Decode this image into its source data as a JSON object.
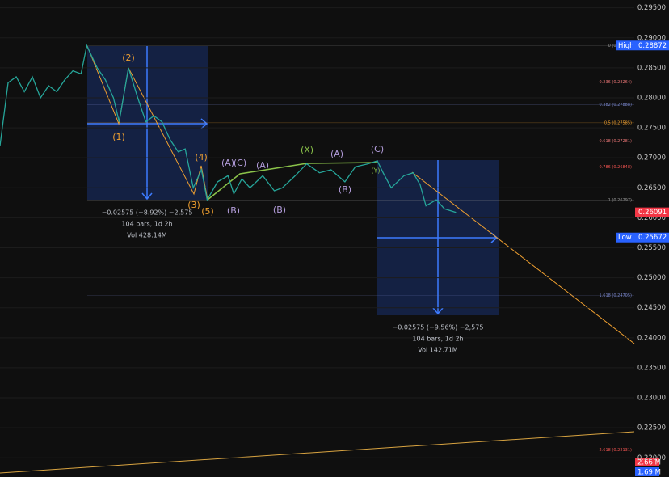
{
  "chart_data": {
    "type": "line",
    "x": [
      0,
      7,
      14,
      21,
      28,
      35,
      42,
      49,
      56,
      63,
      70,
      75,
      84,
      91,
      98,
      103,
      111,
      119,
      126,
      133,
      140,
      147,
      154,
      160,
      167,
      174,
      179,
      188,
      197,
      202,
      209,
      216,
      227,
      237,
      244,
      255,
      265,
      276,
      286,
      298,
      307,
      318,
      326,
      331,
      338,
      349,
      357,
      363,
      368,
      377,
      384,
      394
    ],
    "series": [
      {
        "color": "#26a69a",
        "values": [
          0.272,
          0.2825,
          0.2835,
          0.281,
          0.2835,
          0.28,
          0.282,
          0.281,
          0.283,
          0.2845,
          0.284,
          0.2887,
          0.285,
          0.283,
          0.28,
          0.276,
          0.285,
          0.28,
          0.276,
          0.277,
          0.276,
          0.273,
          0.271,
          0.2715,
          0.265,
          0.268,
          0.263,
          0.266,
          0.267,
          0.264,
          0.2665,
          0.265,
          0.267,
          0.2645,
          0.265,
          0.267,
          0.269,
          0.2675,
          0.268,
          0.266,
          0.2685,
          0.269,
          0.2695,
          0.2675,
          0.265,
          0.267,
          0.2675,
          0.2655,
          0.262,
          0.263,
          0.2615,
          0.2609
        ]
      }
    ],
    "xlim": [
      0,
      548
    ],
    "ylim": [
      0.2168,
      0.2963
    ],
    "yticks": [
      {
        "value": 0.295,
        "label": "0.29500"
      },
      {
        "value": 0.29,
        "label": "0.29000"
      },
      {
        "value": 0.285,
        "label": "0.28500"
      },
      {
        "value": 0.28,
        "label": "0.28000"
      },
      {
        "value": 0.275,
        "label": "0.27500"
      },
      {
        "value": 0.27,
        "label": "0.27000"
      },
      {
        "value": 0.265,
        "label": "0.26500"
      },
      {
        "value": 0.26,
        "label": "0.26000"
      },
      {
        "value": 0.255,
        "label": "0.25500"
      },
      {
        "value": 0.25,
        "label": "0.25000"
      },
      {
        "value": 0.245,
        "label": "0.24500"
      },
      {
        "value": 0.24,
        "label": "0.24000"
      },
      {
        "value": 0.235,
        "label": "0.23500"
      },
      {
        "value": 0.23,
        "label": "0.23000"
      },
      {
        "value": 0.225,
        "label": "0.22500"
      },
      {
        "value": 0.22,
        "label": "0.22000"
      }
    ],
    "fib_levels": [
      {
        "label": "0 (0.28872)",
        "price": 0.28872
      },
      {
        "label": "0.236 (0.28264)",
        "price": 0.28264
      },
      {
        "label": "0.382 (0.27888)",
        "price": 0.27888
      },
      {
        "label": "0.5 (0.27585)",
        "price": 0.27585
      },
      {
        "label": "0.618 (0.27281)",
        "price": 0.27281
      },
      {
        "label": "0.786 (0.26848)",
        "price": 0.26848
      },
      {
        "label": "1 (0.26297)",
        "price": 0.26297
      },
      {
        "label": "1.618 (0.24705)",
        "price": 0.24705
      },
      {
        "label": "2.618 (0.22131)",
        "price": 0.22131
      }
    ],
    "high_label": "High",
    "high": 0.28872,
    "last": 0.26091,
    "low_label": "Low",
    "low": 0.25672,
    "volume_badges": [
      "2.66 M",
      "1.69 M"
    ],
    "waves": [
      "(2)",
      "(1)",
      "(4)",
      "(3)",
      "(5)",
      "(A)",
      "(C)",
      "(A)",
      "(B)",
      "(B)",
      "(X)",
      "(A)",
      "(B)",
      "(C)",
      "(Y)"
    ],
    "measure_1": [
      "−0.02575 (−8.92%) −2,575",
      "104 bars, 1d 2h",
      "Vol 428.14M"
    ],
    "measure_2": [
      "−0.02575 (−9.56%) −2,575",
      "104 bars, 1d 2h",
      "Vol 142.71M"
    ]
  }
}
